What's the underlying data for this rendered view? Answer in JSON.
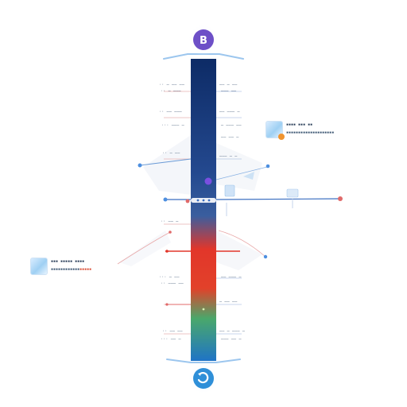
{
  "top_badge": {
    "glyph": "B",
    "icon": "b-badge-icon",
    "color": "#6d4fc7"
  },
  "bottom_badge": {
    "icon": "circle-arrow-icon",
    "color": "#2f8fd8"
  },
  "bar_colors": {
    "top": "#0d2b66",
    "mid": "#2f5aa6",
    "hot": "#e2362a",
    "low": "#3ea66a",
    "bottom": "#1f74c6"
  },
  "accent_colors": {
    "line": "#3a6ec0",
    "node": "#4d8fe0",
    "marker": "#e06a6a",
    "purple": "#7a4fe0"
  },
  "left_labels": {
    "l1": "·· ─ ── ──",
    "l2": "·· ─ ───",
    "l3": "·· ── ───",
    "l4": "··· ─── ─",
    "l5": "·· ─ ──",
    "l6": "·· ── ─",
    "l7": "··· ─ ──",
    "l8": "·· ─── ──",
    "l9": "·· ── ──",
    "l10": "··· ── ─"
  },
  "right_labels": {
    "r1": "── ─ ──",
    "r2": "─── ──",
    "r3": "── ─── ─",
    "r4": "─ ─── ──",
    "r5": "── ── ─",
    "r6": "─── ─ ─",
    "r7": "── ─── ─",
    "r8": "─ ── ──",
    "r9": "── ─ ─── ─",
    "r10": "─── ── ─"
  },
  "card_right": {
    "line1": "▪▪▪▪ ▪▪▪ ▪▪",
    "line2": "▪▪▪▪▪▪▪▪▪▪▪▪▪▪▪▪▪▪▪▪"
  },
  "card_left": {
    "line1": "▪▪▪ ▪▪▪▪▪ ▪▪▪▪",
    "line2_a": "▪▪▪▪▪▪▪▪▪▪▪▪",
    "line2_b": "▪▪▪▪▪"
  }
}
